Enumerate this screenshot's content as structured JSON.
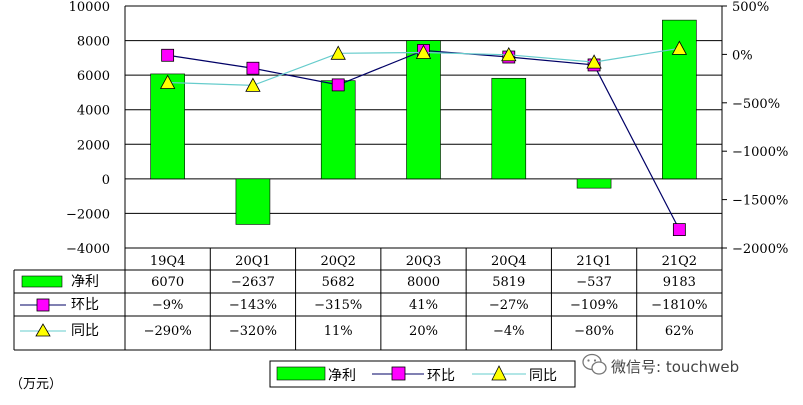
{
  "chart_data": {
    "type": "bar",
    "categories": [
      "19Q4",
      "20Q1",
      "20Q2",
      "20Q3",
      "20Q4",
      "21Q1",
      "21Q2"
    ],
    "series": [
      {
        "name": "净利",
        "type": "bar",
        "axis": "left",
        "color": "#00ff00",
        "values": [
          6070,
          -2637,
          5682,
          8000,
          5819,
          -537,
          9183
        ]
      },
      {
        "name": "环比",
        "type": "line",
        "axis": "right",
        "color": "#000066",
        "marker_color": "#ff00ff",
        "values": [
          -9,
          -143,
          -315,
          41,
          -27,
          -109,
          -1810
        ]
      },
      {
        "name": "同比",
        "type": "line",
        "axis": "right",
        "color": "#66cccc",
        "marker_color": "#ffff00",
        "values": [
          -290,
          -320,
          11,
          20,
          -4,
          -80,
          62
        ]
      }
    ],
    "ylim_left": [
      -4000,
      10000
    ],
    "yticks_left": [
      "10000",
      "8000",
      "6000",
      "4000",
      "2000",
      "0",
      "-2000",
      "-4000"
    ],
    "ylim_right": [
      -2000,
      500
    ],
    "yticks_right": [
      "500%",
      "0%",
      "-500%",
      "-1000%",
      "-1500%",
      "-2000%"
    ],
    "grid": true,
    "legend_position": "bottom",
    "table": {
      "rows": [
        {
          "label": "净利",
          "cells": [
            "6070",
            "-2637",
            "5682",
            "8000",
            "5819",
            "-537",
            "9183"
          ]
        },
        {
          "label": "环比",
          "cells": [
            "-9%",
            "-143%",
            "-315%",
            "41%",
            "-27%",
            "-109%",
            "-1810%"
          ]
        },
        {
          "label": "同比",
          "cells": [
            "-290%",
            "-320%",
            "11%",
            "20%",
            "-4%",
            "-80%",
            "62%"
          ]
        }
      ]
    },
    "unit_label": "（万元）"
  },
  "watermark": "微信号: touchweb"
}
